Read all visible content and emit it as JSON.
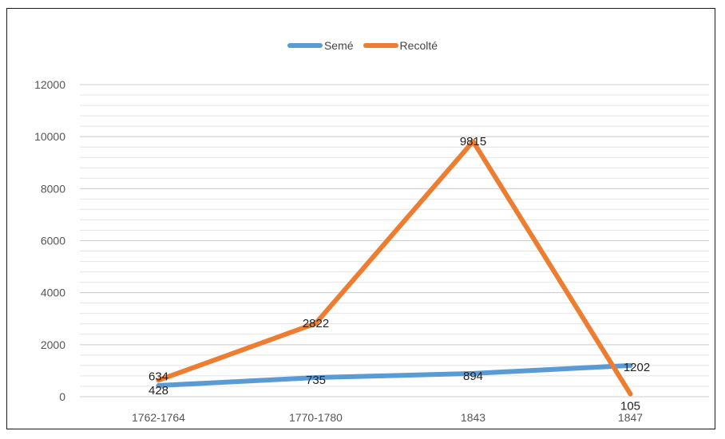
{
  "chart_data": {
    "type": "line",
    "categories": [
      "1762-1764",
      "1770-1780",
      "1843",
      "1847"
    ],
    "series": [
      {
        "name": "Semé",
        "values": [
          428,
          735,
          894,
          1202
        ],
        "color": "#5b9bd5"
      },
      {
        "name": "Recolté",
        "values": [
          634,
          2822,
          9815,
          105
        ],
        "color": "#ed7d31"
      }
    ],
    "ylim": [
      0,
      12000
    ],
    "yticks": [
      0,
      2000,
      4000,
      6000,
      8000,
      10000,
      12000
    ],
    "grid": true,
    "legend": "top-center",
    "title": "",
    "xlabel": "",
    "ylabel": ""
  }
}
